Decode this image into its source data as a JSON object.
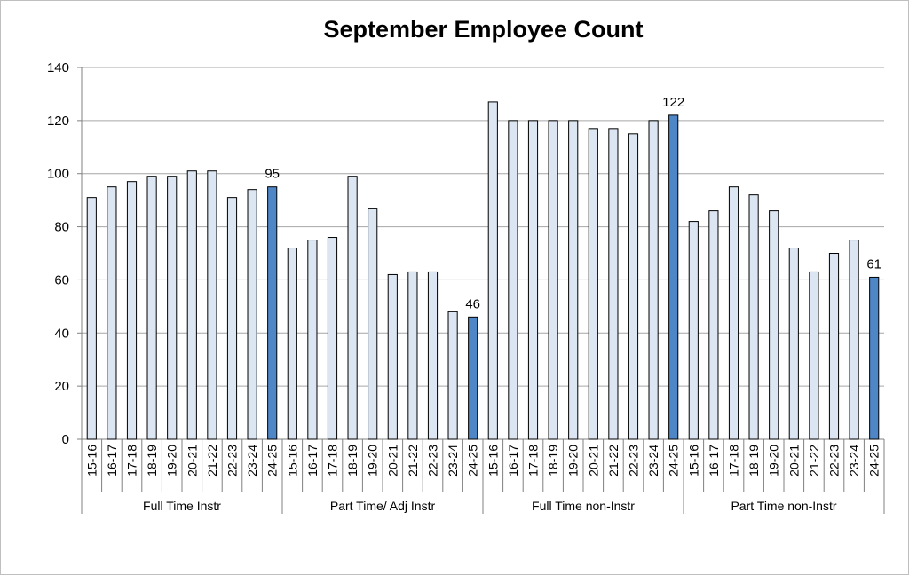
{
  "chart_data": {
    "type": "bar",
    "title": "September Employee Count",
    "ylim": [
      0,
      140
    ],
    "yticks": [
      0,
      20,
      40,
      60,
      80,
      100,
      120,
      140
    ],
    "grid": true,
    "legend": "none",
    "colors": {
      "bar_light": "#dce6f2",
      "bar_highlight": "#4f86c6",
      "bar_border": "#000000",
      "grid": "#a6a6a6"
    },
    "groups": [
      {
        "name": "Full Time Instr",
        "categories": [
          "15-16",
          "16-17",
          "17-18",
          "18-19",
          "19-20",
          "20-21",
          "21-22",
          "22-23",
          "23-24",
          "24-25"
        ],
        "values": [
          91,
          95,
          97,
          99,
          99,
          101,
          101,
          91,
          94,
          95
        ],
        "data_label": "95"
      },
      {
        "name": "Part Time/ Adj Instr",
        "categories": [
          "15-16",
          "16-17",
          "17-18",
          "18-19",
          "19-20",
          "20-21",
          "21-22",
          "22-23",
          "23-24",
          "24-25"
        ],
        "values": [
          72,
          75,
          76,
          99,
          87,
          62,
          63,
          63,
          48,
          46
        ],
        "data_label": "46"
      },
      {
        "name": "Full Time non-Instr",
        "categories": [
          "15-16",
          "16-17",
          "17-18",
          "18-19",
          "19-20",
          "20-21",
          "21-22",
          "22-23",
          "23-24",
          "24-25"
        ],
        "values": [
          127,
          120,
          120,
          120,
          120,
          117,
          117,
          115,
          120,
          122
        ],
        "data_label": "122"
      },
      {
        "name": "Part Time non-Instr",
        "categories": [
          "15-16",
          "16-17",
          "17-18",
          "18-19",
          "19-20",
          "20-21",
          "21-22",
          "22-23",
          "23-24",
          "24-25"
        ],
        "values": [
          82,
          86,
          95,
          92,
          86,
          72,
          63,
          70,
          75,
          61
        ],
        "data_label": "61"
      }
    ]
  }
}
